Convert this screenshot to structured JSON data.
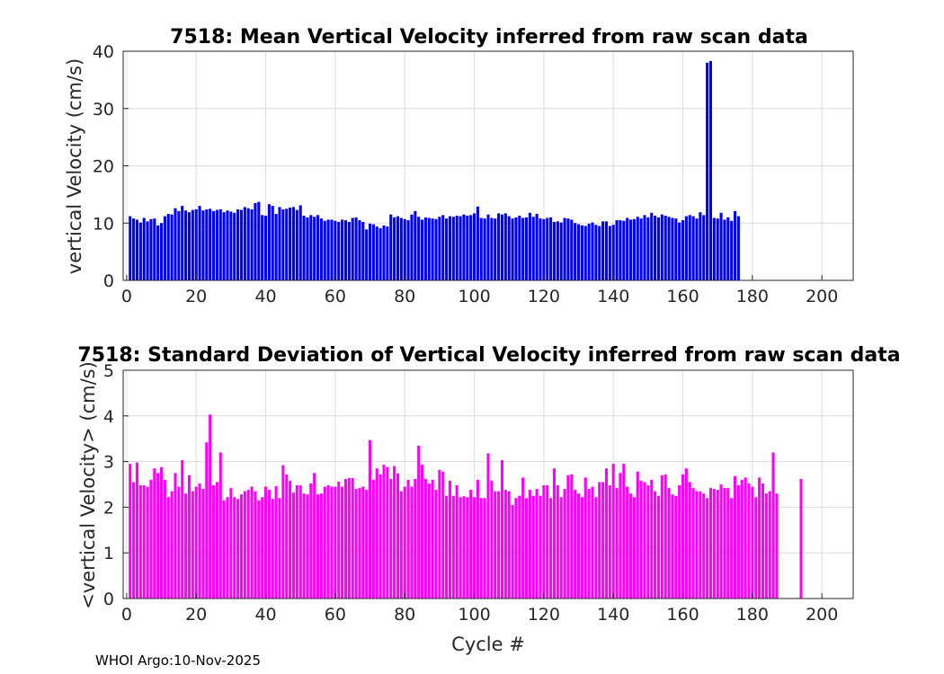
{
  "chart_data": [
    {
      "type": "bar",
      "title": "7518: Mean Vertical Velocity inferred from raw scan data",
      "xlabel": "",
      "ylabel": "vertical Velocity (cm/s)",
      "xlim": [
        -1,
        209
      ],
      "ylim": [
        0,
        40
      ],
      "xticks": [
        "0",
        "20",
        "40",
        "60",
        "80",
        "100",
        "120",
        "140",
        "160",
        "180",
        "200"
      ],
      "yticks": [
        "0",
        "10",
        "20",
        "30",
        "40"
      ],
      "grid": true,
      "color": "#0000ff",
      "x_start": 1,
      "values": [
        11.2,
        10.8,
        10.6,
        10.1,
        10.9,
        10.3,
        10.7,
        10.8,
        9.6,
        10.0,
        11.2,
        11.6,
        11.5,
        12.6,
        12.1,
        13.0,
        12.2,
        11.9,
        12.3,
        12.4,
        13.0,
        12.2,
        12.4,
        12.5,
        12.1,
        12.3,
        12.4,
        11.9,
        12.2,
        12.0,
        11.8,
        12.4,
        12.3,
        12.8,
        12.6,
        12.4,
        13.5,
        13.7,
        11.4,
        11.3,
        13.3,
        13.0,
        11.6,
        12.8,
        12.4,
        12.5,
        12.7,
        12.8,
        12.3,
        13.1,
        11.3,
        11.0,
        11.4,
        11.1,
        11.4,
        10.8,
        10.4,
        10.6,
        10.6,
        10.4,
        10.2,
        10.6,
        10.5,
        10.2,
        10.9,
        11.0,
        10.5,
        10.2,
        8.9,
        9.9,
        9.8,
        9.4,
        9.1,
        9.6,
        9.4,
        11.5,
        11.0,
        11.2,
        10.9,
        10.7,
        10.5,
        11.5,
        12.1,
        11.1,
        10.6,
        11.0,
        10.9,
        10.8,
        10.7,
        11.1,
        11.4,
        10.8,
        11.2,
        11.1,
        11.3,
        11.2,
        11.5,
        11.3,
        11.4,
        11.7,
        12.9,
        10.9,
        10.8,
        11.5,
        10.9,
        10.8,
        11.7,
        11.5,
        11.7,
        11.2,
        10.8,
        11.0,
        11.3,
        10.9,
        11.0,
        11.8,
        11.1,
        11.6,
        10.8,
        10.7,
        10.9,
        11.0,
        10.2,
        10.3,
        10.1,
        10.9,
        10.8,
        10.6,
        10.0,
        9.8,
        9.6,
        9.5,
        9.9,
        10.1,
        9.7,
        9.5,
        10.3,
        10.3,
        9.5,
        9.7,
        10.5,
        10.5,
        10.4,
        10.9,
        10.6,
        10.7,
        11.1,
        10.8,
        11.4,
        11.0,
        11.8,
        11.3,
        11.0,
        11.5,
        11.3,
        11.1,
        10.9,
        10.8,
        10.1,
        10.5,
        11.2,
        11.4,
        11.2,
        10.8,
        11.9,
        11.4,
        38.0,
        38.3,
        10.9,
        10.8,
        11.8,
        10.6,
        11.0,
        10.4,
        12.1,
        11.2
      ]
    },
    {
      "type": "bar",
      "title": "7518: Standard Deviation of Vertical Velocity inferred from raw scan data",
      "xlabel": "Cycle #",
      "ylabel": "<vertical Velocity> (cm/s)",
      "xlim": [
        -1,
        209
      ],
      "ylim": [
        0,
        5
      ],
      "xticks": [
        "0",
        "20",
        "40",
        "60",
        "80",
        "100",
        "120",
        "140",
        "160",
        "180",
        "200"
      ],
      "yticks": [
        "0",
        "1",
        "2",
        "3",
        "4",
        "5"
      ],
      "grid": true,
      "color": "#ff00ff",
      "x_start": 1,
      "values": [
        2.95,
        2.55,
        2.98,
        2.48,
        2.48,
        2.45,
        2.6,
        2.85,
        2.75,
        2.88,
        2.6,
        2.22,
        2.35,
        2.75,
        2.45,
        3.03,
        2.3,
        2.7,
        2.35,
        2.45,
        2.52,
        2.4,
        3.42,
        4.03,
        2.48,
        2.55,
        3.2,
        2.15,
        2.22,
        2.42,
        2.22,
        2.18,
        2.28,
        2.35,
        2.38,
        2.45,
        2.35,
        2.15,
        2.22,
        2.45,
        2.38,
        2.18,
        2.46,
        2.2,
        2.92,
        2.72,
        2.58,
        2.32,
        2.48,
        2.48,
        2.3,
        2.28,
        2.52,
        2.75,
        2.28,
        2.3,
        2.45,
        2.48,
        2.45,
        2.45,
        2.56,
        2.45,
        2.62,
        2.64,
        2.64,
        2.4,
        2.42,
        2.45,
        2.38,
        3.47,
        2.6,
        2.85,
        2.72,
        2.93,
        2.88,
        2.62,
        2.9,
        2.74,
        2.35,
        2.45,
        2.6,
        2.45,
        2.62,
        3.35,
        2.93,
        2.62,
        2.52,
        2.6,
        2.38,
        2.82,
        2.78,
        2.25,
        2.58,
        2.25,
        2.48,
        2.22,
        2.24,
        2.22,
        2.38,
        2.22,
        2.6,
        2.2,
        2.2,
        3.18,
        2.58,
        2.35,
        2.35,
        3.03,
        2.38,
        2.35,
        2.05,
        2.2,
        2.25,
        2.65,
        2.2,
        2.38,
        2.25,
        2.4,
        2.25,
        2.48,
        2.48,
        2.2,
        2.85,
        2.48,
        2.22,
        2.4,
        2.7,
        2.72,
        2.38,
        2.3,
        2.22,
        2.65,
        2.4,
        2.45,
        2.22,
        2.55,
        2.55,
        2.85,
        2.48,
        2.95,
        2.42,
        2.75,
        2.95,
        2.45,
        2.3,
        2.22,
        2.78,
        2.58,
        2.55,
        2.48,
        2.6,
        2.35,
        2.25,
        2.7,
        2.72,
        2.42,
        2.28,
        2.25,
        2.48,
        2.72,
        2.85,
        2.55,
        2.42,
        2.35,
        2.35,
        2.3,
        2.2,
        2.42,
        2.4,
        2.38,
        2.5,
        2.42,
        2.42,
        2.2,
        2.68,
        2.48,
        2.6,
        2.65,
        2.52,
        2.45,
        2.22,
        2.65,
        2.52,
        2.3,
        2.35,
        3.2,
        2.3
      ],
      "extra_bars": [
        {
          "x": 194,
          "value": 2.62
        }
      ]
    }
  ],
  "footer": "WHOI Argo:10-Nov-2025"
}
